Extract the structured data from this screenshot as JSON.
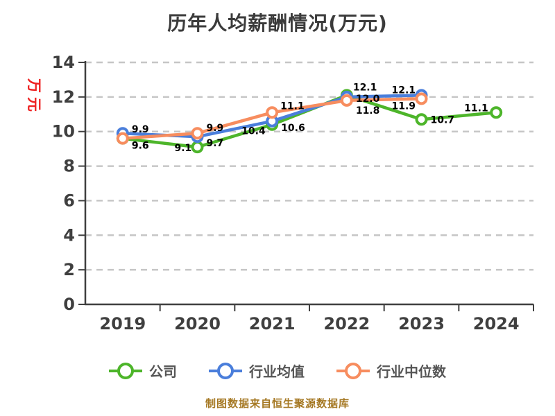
{
  "title": "历年人均薪酬情况(万元)",
  "source_note": "制图数据来自恒生聚源数据库",
  "colors": {
    "background": "#ffffff",
    "title": "#3b3b3b",
    "axis": "#3f3f3f",
    "tick_label": "#3f3f3f",
    "grid": "#c6c6c6",
    "ylabel_red": "#ee2222",
    "legend_text": "#555555",
    "source_note": "#a57823",
    "data_label": "#000000",
    "series_green": "#4db52a",
    "series_blue": "#4a7edb",
    "series_orange": "#f78d5f"
  },
  "chart_data": {
    "type": "line",
    "title": "历年人均薪酬情况(万元)",
    "ylabel": "万元",
    "xlabel": "",
    "categories": [
      "2019",
      "2020",
      "2021",
      "2022",
      "2023",
      "2024"
    ],
    "series": [
      {
        "name": "公司",
        "color": "#4db52a",
        "values": [
          9.6,
          9.1,
          10.4,
          12.1,
          10.7,
          11.1
        ],
        "label_offsets": [
          [
            13,
            11
          ],
          [
            -33,
            2
          ],
          [
            -44,
            10
          ],
          [
            9,
            -11
          ],
          [
            13,
            1
          ],
          [
            -46,
            -6
          ]
        ]
      },
      {
        "name": "行业均值",
        "color": "#4a7edb",
        "values": [
          9.9,
          9.7,
          10.6,
          12.0,
          12.1,
          null
        ],
        "label_offsets": [
          [
            13,
            -5
          ],
          [
            13,
            10
          ],
          [
            13,
            10
          ],
          [
            13,
            3
          ],
          [
            -43,
            -7
          ],
          null
        ]
      },
      {
        "name": "行业中位数",
        "color": "#f78d5f",
        "values": [
          9.6,
          9.9,
          11.1,
          11.8,
          11.9,
          null
        ],
        "label_offsets": [
          [
            13,
            11
          ],
          [
            13,
            -7
          ],
          [
            12,
            -9
          ],
          [
            13,
            15
          ],
          [
            -43,
            11
          ],
          null
        ]
      }
    ],
    "ylim": [
      0,
      14
    ],
    "yticks": [
      0,
      2,
      4,
      6,
      8,
      10,
      12,
      14
    ],
    "grid": "dashed-horizontal",
    "legend_position": "bottom",
    "marker": "open-circle"
  }
}
